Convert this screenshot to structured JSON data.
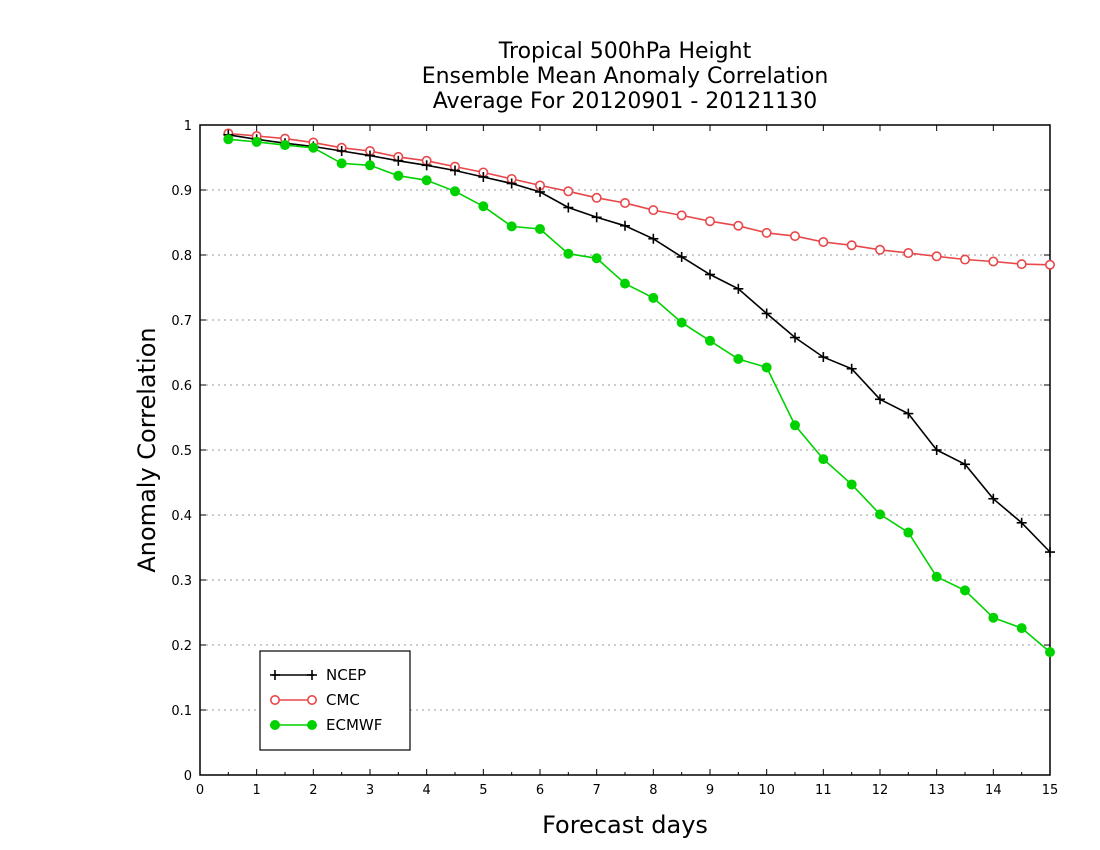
{
  "chart_data": {
    "type": "line",
    "title": [
      "Tropical 500hPa Height",
      "Ensemble Mean Anomaly Correlation",
      "Average For 20120901 - 20121130"
    ],
    "xlabel": "Forecast days",
    "ylabel": "Anomaly Correlation",
    "xlim": [
      0,
      15
    ],
    "ylim": [
      0,
      1
    ],
    "xticks": [
      "0",
      "1",
      "2",
      "3",
      "4",
      "5",
      "6",
      "7",
      "8",
      "9",
      "10",
      "11",
      "12",
      "13",
      "14",
      "15"
    ],
    "yticks": [
      "0",
      "0.1",
      "0.2",
      "0.3",
      "0.4",
      "0.5",
      "0.6",
      "0.7",
      "0.8",
      "0.9",
      "1"
    ],
    "grid": "horizontal-dotted",
    "legend_position": "bottom-left",
    "x": [
      0.5,
      1,
      1.5,
      2,
      2.5,
      3,
      3.5,
      4,
      4.5,
      5,
      5.5,
      6,
      6.5,
      7,
      7.5,
      8,
      8.5,
      9,
      9.5,
      10,
      10.5,
      11,
      11.5,
      12,
      12.5,
      13,
      13.5,
      14,
      14.5,
      15
    ],
    "series": [
      {
        "name": "NCEP",
        "color": "#000000",
        "marker": "plus",
        "values": [
          0.985,
          0.978,
          0.972,
          0.967,
          0.96,
          0.953,
          0.945,
          0.938,
          0.93,
          0.92,
          0.91,
          0.897,
          0.873,
          0.858,
          0.845,
          0.825,
          0.797,
          0.77,
          0.748,
          0.71,
          0.673,
          0.643,
          0.625,
          0.578,
          0.556,
          0.5,
          0.478,
          0.425,
          0.388,
          0.343
        ]
      },
      {
        "name": "CMC",
        "color": "#e8474a",
        "marker": "open-circle",
        "values": [
          0.987,
          0.983,
          0.979,
          0.973,
          0.965,
          0.96,
          0.951,
          0.945,
          0.936,
          0.927,
          0.917,
          0.907,
          0.898,
          0.888,
          0.88,
          0.869,
          0.861,
          0.852,
          0.845,
          0.834,
          0.829,
          0.82,
          0.815,
          0.808,
          0.803,
          0.798,
          0.793,
          0.79,
          0.786,
          0.785
        ]
      },
      {
        "name": "ECMWF",
        "color": "#00d200",
        "marker": "filled-circle",
        "values": [
          0.978,
          0.974,
          0.969,
          0.965,
          0.941,
          0.938,
          0.922,
          0.915,
          0.898,
          0.875,
          0.844,
          0.84,
          0.802,
          0.795,
          0.756,
          0.734,
          0.696,
          0.668,
          0.64,
          0.627,
          0.538,
          0.486,
          0.447,
          0.401,
          0.373,
          0.305,
          0.284,
          0.242,
          0.226,
          0.189
        ]
      }
    ]
  }
}
